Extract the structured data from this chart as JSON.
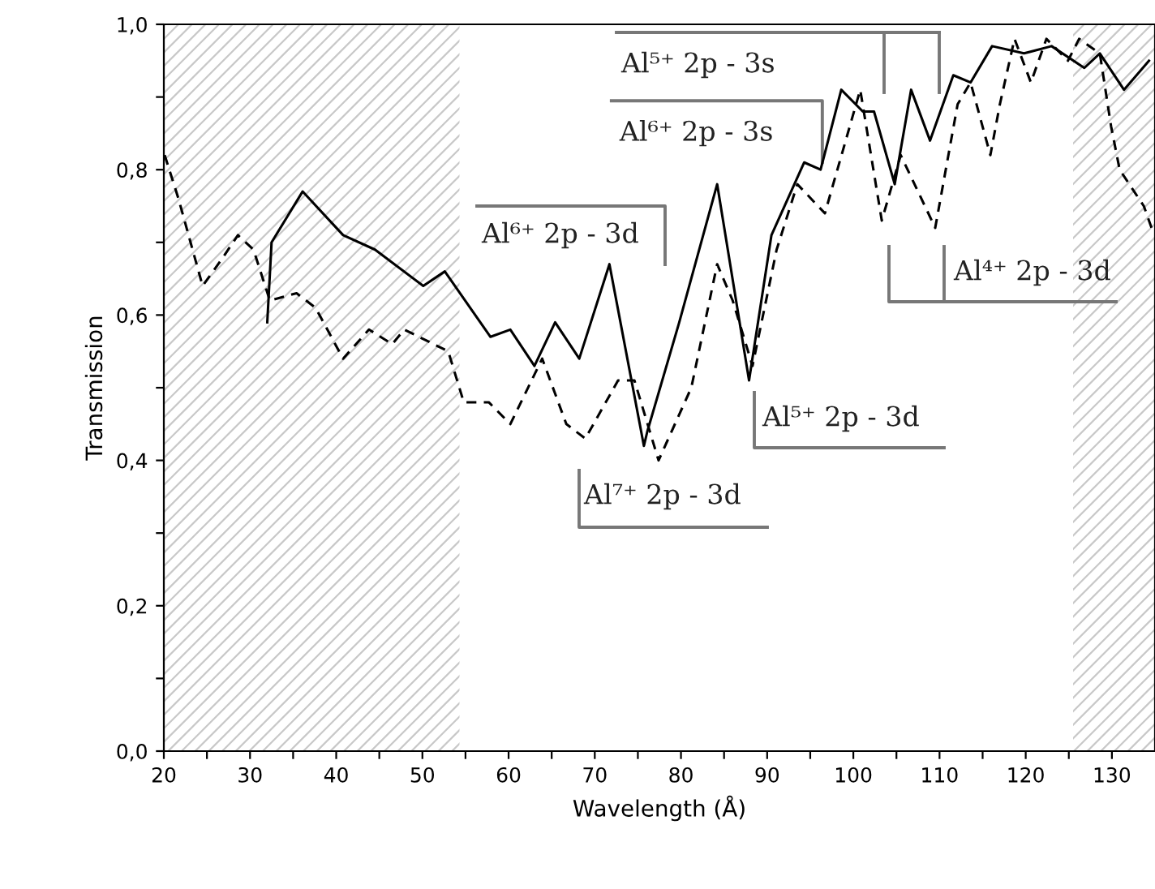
{
  "chart_data": {
    "type": "line",
    "xlabel": "Wavelength (Å)",
    "ylabel": "Transmission",
    "xlim": [
      20,
      135
    ],
    "ylim": [
      0,
      1
    ],
    "xticks": [
      20,
      {
        "value": 25,
        "label": null
      },
      30,
      {
        "value": 35,
        "label": null
      },
      40,
      {
        "value": 45,
        "label": null
      },
      50,
      {
        "value": 55,
        "label": null
      },
      60,
      {
        "value": 65,
        "label": null
      },
      70,
      {
        "value": 75,
        "label": null
      },
      80,
      {
        "value": 85,
        "label": null
      },
      90,
      {
        "value": 95,
        "label": null
      },
      100,
      {
        "value": 105,
        "label": null
      },
      110,
      {
        "value": 115,
        "label": null
      },
      120,
      {
        "value": 125,
        "label": null
      },
      130
    ],
    "yticks": [
      {
        "value": 0,
        "label": "0,0"
      },
      {
        "value": 0.1,
        "label": null
      },
      {
        "value": 0.2,
        "label": "0,2"
      },
      {
        "value": 0.3,
        "label": null
      },
      {
        "value": 0.4,
        "label": "0,4"
      },
      {
        "value": 0.5,
        "label": null
      },
      {
        "value": 0.6,
        "label": "0,6"
      },
      {
        "value": 0.7,
        "label": null
      },
      {
        "value": 0.8,
        "label": "0,8"
      },
      {
        "value": 0.9,
        "label": null
      },
      {
        "value": 1.0,
        "label": "1,0"
      }
    ],
    "grid": false,
    "series": [
      {
        "color": "#000000",
        "line_style": "solid",
        "x": [
          32.0,
          32.5,
          36.1,
          40.8,
          44.5,
          50.1,
          52.6,
          57.9,
          60.2,
          63.0,
          65.4,
          68.2,
          71.7,
          75.7,
          76.1,
          79.8,
          84.2,
          87.9,
          90.5,
          94.3,
          96.2,
          98.6,
          101.1,
          102.4,
          104.8,
          106.7,
          108.9,
          111.6,
          113.6,
          116.1,
          119.8,
          123.0,
          126.8,
          128.6,
          131.4,
          134.3
        ],
        "values": [
          0.59,
          0.7,
          0.77,
          0.71,
          0.69,
          0.64,
          0.66,
          0.57,
          0.58,
          0.53,
          0.59,
          0.54,
          0.67,
          0.42,
          0.44,
          0.59,
          0.78,
          0.51,
          0.71,
          0.81,
          0.8,
          0.91,
          0.88,
          0.88,
          0.78,
          0.91,
          0.84,
          0.93,
          0.92,
          0.97,
          0.96,
          0.97,
          0.94,
          0.96,
          0.91,
          0.95
        ]
      },
      {
        "color": "#000000",
        "line_style": "dashed",
        "x": [
          20.1,
          21.7,
          24.5,
          26.9,
          28.6,
          30.4,
          32.3,
          35.4,
          37.6,
          40.8,
          43.8,
          46.5,
          47.9,
          53.0,
          54.8,
          57.7,
          60.2,
          63.9,
          66.7,
          68.9,
          72.7,
          74.6,
          77.4,
          81.2,
          84.2,
          86.0,
          88.3,
          91.1,
          93.5,
          96.7,
          100.8,
          103.3,
          105.5,
          109.5,
          112.1,
          113.6,
          115.9,
          117.0,
          118.7,
          120.6,
          122.4,
          124.9,
          126.2,
          128.6,
          129.9,
          130.9,
          133.7,
          134.6
        ],
        "values": [
          0.82,
          0.76,
          0.64,
          0.68,
          0.71,
          0.69,
          0.62,
          0.63,
          0.61,
          0.54,
          0.58,
          0.56,
          0.58,
          0.55,
          0.48,
          0.48,
          0.45,
          0.54,
          0.45,
          0.43,
          0.51,
          0.51,
          0.4,
          0.5,
          0.67,
          0.62,
          0.53,
          0.69,
          0.78,
          0.74,
          0.91,
          0.73,
          0.82,
          0.72,
          0.89,
          0.92,
          0.82,
          0.89,
          0.98,
          0.92,
          0.98,
          0.95,
          0.98,
          0.96,
          0.86,
          0.8,
          0.75,
          0.72
        ]
      }
    ],
    "bands": [
      {
        "axis": "x",
        "from": 20,
        "to": 54.3,
        "color": "#c8c8c8"
      },
      {
        "axis": "x",
        "from": 125.5,
        "to": 135,
        "color": "#c8c8c8"
      }
    ],
    "annotations": [
      "Al⁵⁺ 2p - 3s",
      {
        "text": "Al⁶⁺ 2p - 3s",
        "x": 96.4,
        "y": 0.81
      },
      "Al⁶⁺ 2p - 3d",
      "Al⁴⁺ 2p - 3d",
      "Al⁵⁺ 2p - 3d",
      "Al⁷⁺ 2p - 3d"
    ]
  }
}
